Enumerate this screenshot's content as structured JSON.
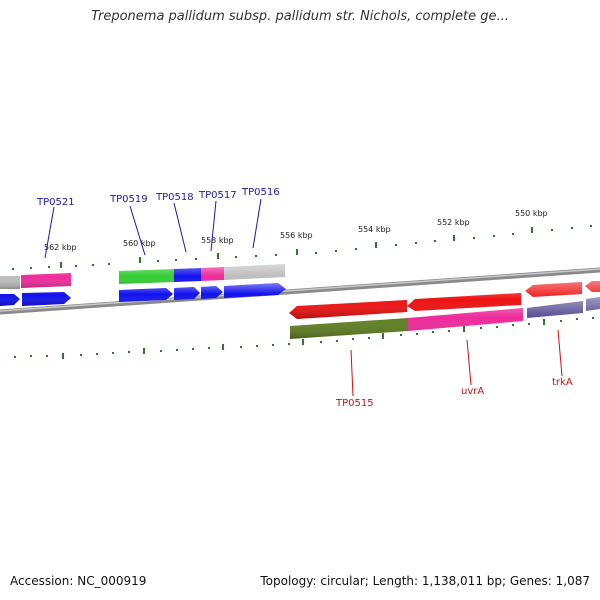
{
  "header": {
    "title": "Treponema pallidum subsp. pallidum str. Nichols, complete ge..."
  },
  "footer": {
    "accession": "Accession: NC_000919",
    "info": "Topology: circular; Length: 1,138,011 bp; Genes: 1,087"
  },
  "scale": {
    "tick_labels": [
      "562 kbp",
      "560 kbp",
      "558 kbp",
      "556 kbp",
      "554 kbp",
      "552 kbp",
      "550 kbp"
    ]
  },
  "genes": {
    "top": [
      "TP0521",
      "TP0519",
      "TP0518",
      "TP0517",
      "TP0516"
    ],
    "bottom": [
      "TP0515",
      "uvrA",
      "trkA"
    ]
  },
  "colors": {
    "grey": "#bdbdbd",
    "pink": "#ee2a9a",
    "blue": "#1010ee",
    "green": "#33cc33",
    "red": "#ee1111",
    "olive": "#5f7f22",
    "purple": "#554b92",
    "backbone": "#8a8a8a",
    "tick": "#2a7a2a",
    "label_blue": "#1a1aaa",
    "label_red": "#cc1111"
  }
}
